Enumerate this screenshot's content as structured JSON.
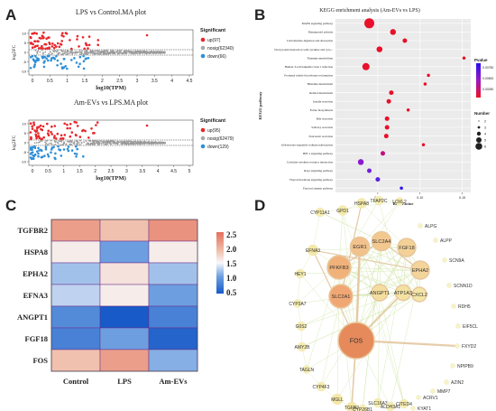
{
  "panel_letters": [
    "A",
    "B",
    "C",
    "D"
  ],
  "panel_a": {
    "plots": [
      {
        "title": "LPS vs Control.MA plot",
        "xlabel": "log10(TPM)",
        "ylabel": "log2FC",
        "xticks": [
          "0",
          "0.5",
          "1",
          "1.5",
          "2",
          "2.5",
          "3",
          "3.5",
          "4",
          "4.5"
        ],
        "yticks": [
          "10",
          "5",
          "0",
          "-5",
          "-10"
        ],
        "legend_title": "Significant",
        "legend": [
          {
            "label": "up(97)",
            "color": "#e8262a"
          },
          {
            "label": "nosig(62340)",
            "color": "#a9a9a9"
          },
          {
            "label": "down(66)",
            "color": "#2e8fd6"
          }
        ]
      },
      {
        "title": "Am-EVs vs LPS.MA plot",
        "xlabel": "log10(TPM)",
        "ylabel": "log2FC",
        "xticks": [
          "0",
          "0.5",
          "1",
          "1.5",
          "2",
          "2.5",
          "3",
          "3.5",
          "4",
          "4.5",
          "5"
        ],
        "yticks": [
          "10",
          "5",
          "0",
          "-5",
          "-10"
        ],
        "legend_title": "Significant",
        "legend": [
          {
            "label": "up(95)",
            "color": "#e8262a"
          },
          {
            "label": "nosig(62479)",
            "color": "#a9a9a9"
          },
          {
            "label": "down(129)",
            "color": "#2e8fd6"
          }
        ]
      }
    ]
  },
  "panel_b": {
    "title": "KEGG enrichment analysis (Am-EVs vs LPS)",
    "xlabel": "Rich Factor",
    "ylabel": "KEGG pathway",
    "xticks": [
      "0.05",
      "0.10",
      "0.15"
    ],
    "legend_pvalue_title": "Pvalue",
    "legend_pvalue_ticks": [
      "0.00750",
      "0.00500",
      "0.00250"
    ],
    "legend_number_title": "Number",
    "legend_number_values": [
      "2",
      "3",
      "4",
      "5",
      "6"
    ]
  },
  "chart_data": [
    {
      "type": "scatter",
      "title": "KEGG enrichment analysis (Am-EVs vs LPS)",
      "xlabel": "Rich Factor",
      "ylabel": "KEGG pathway",
      "xlim": [
        0.0,
        0.16
      ],
      "points": [
        {
          "pathway": "MAPK signaling pathway",
          "rich": 0.04,
          "number": 6,
          "color": "#e8102a"
        },
        {
          "pathway": "Rheumatoid arthritis",
          "rich": 0.068,
          "number": 3,
          "color": "#e8102a"
        },
        {
          "pathway": "Carbohydrate digestion and absorption",
          "rich": 0.082,
          "number": 2,
          "color": "#e8102a"
        },
        {
          "pathway": "Viral protein interaction with cytokine and cyto...",
          "rich": 0.052,
          "number": 3,
          "color": "#e8102a"
        },
        {
          "pathway": "Thiamine metabolism",
          "rich": 0.152,
          "number": 1,
          "color": "#e8102a"
        },
        {
          "pathway": "Human T-cell leukemia virus 1 infection",
          "rich": 0.036,
          "number": 4,
          "color": "#e8102a"
        },
        {
          "pathway": "Proximal tubule bicarbonate reclamation",
          "rich": 0.11,
          "number": 1,
          "color": "#e8102a"
        },
        {
          "pathway": "Histidine metabolism",
          "rich": 0.106,
          "number": 1,
          "color": "#e8102a"
        },
        {
          "pathway": "Retinol metabolism",
          "rich": 0.066,
          "number": 2,
          "color": "#e8102a"
        },
        {
          "pathway": "Insulin secretion",
          "rich": 0.063,
          "number": 2,
          "color": "#e8102a"
        },
        {
          "pathway": "Folate biosynthesis",
          "rich": 0.086,
          "number": 1,
          "color": "#e8102a"
        },
        {
          "pathway": "Bile secretion",
          "rich": 0.061,
          "number": 2,
          "color": "#e8102a"
        },
        {
          "pathway": "Salivary secretion",
          "rich": 0.061,
          "number": 2,
          "color": "#e8102a"
        },
        {
          "pathway": "Pancreatic secretion",
          "rich": 0.06,
          "number": 2,
          "color": "#e8102a"
        },
        {
          "pathway": "Aldosterone-regulated sodium reabsorption",
          "rich": 0.104,
          "number": 1,
          "color": "#e8102a"
        },
        {
          "pathway": "HIF-1 signaling pathway",
          "rich": 0.056,
          "number": 2,
          "color": "#c0107a"
        },
        {
          "pathway": "Cytokine-cytokine receptor interaction",
          "rich": 0.03,
          "number": 3,
          "color": "#8a18d0"
        },
        {
          "pathway": "Rap1 signaling pathway",
          "rich": 0.04,
          "number": 2,
          "color": "#7020d8"
        },
        {
          "pathway": "Thyroid hormone signaling pathway",
          "rich": 0.05,
          "number": 2,
          "color": "#5a20e0"
        },
        {
          "pathway": "Fanconi anemia pathway",
          "rich": 0.078,
          "number": 1,
          "color": "#2a10f0"
        }
      ]
    },
    {
      "type": "heatmap",
      "rows": [
        "TGFBR2",
        "HSPA8",
        "EPHA2",
        "EFNA3",
        "ANGPT1",
        "FGF18",
        "FOS"
      ],
      "columns": [
        "Control",
        "LPS",
        "Am-EVs"
      ],
      "values": [
        [
          2.2,
          1.9,
          2.3
        ],
        [
          1.5,
          0.9,
          1.5
        ],
        [
          1.1,
          1.6,
          1.1
        ],
        [
          1.2,
          1.5,
          0.9
        ],
        [
          0.7,
          0.2,
          0.6
        ],
        [
          0.6,
          0.9,
          0.3
        ],
        [
          1.9,
          2.2,
          1.0
        ]
      ],
      "colorbar_ticks": [
        "2.5",
        "2.0",
        "1.5",
        "1.0",
        "0.5"
      ],
      "vlim": [
        0.2,
        2.6
      ]
    }
  ],
  "panel_d": {
    "nodes": [
      {
        "label": "FOS",
        "size": 40,
        "color": "#e68a5c"
      },
      {
        "label": "SLC2A1",
        "size": 26,
        "color": "#f1a774"
      },
      {
        "label": "PFKFB3",
        "size": 26,
        "color": "#f0b27a"
      },
      {
        "label": "EGR1",
        "size": 21,
        "color": "#f3c28c"
      },
      {
        "label": "SLC2A4",
        "size": 21,
        "color": "#f3c88f"
      },
      {
        "label": "FGF18",
        "size": 20,
        "color": "#f3d197"
      },
      {
        "label": "EPHA2",
        "size": 20,
        "color": "#f3d59c"
      },
      {
        "label": "ANGPT1",
        "size": 18,
        "color": "#f3de9f"
      },
      {
        "label": "ATP1A3",
        "size": 17,
        "color": "#f4e2a2"
      },
      {
        "label": "CXCL2",
        "size": 16,
        "color": "#f4e6a6"
      },
      {
        "label": "GPD1",
        "size": 11,
        "color": "#f5eba9"
      },
      {
        "label": "HSPA8",
        "size": 11,
        "color": "#f5eba9"
      },
      {
        "label": "TFAP2C",
        "size": 10,
        "color": "#f6edb0"
      },
      {
        "label": "LOXL2",
        "size": 9,
        "color": "#f6efb4"
      },
      {
        "label": "CYP11A1",
        "size": 10,
        "color": "#f6edb0"
      },
      {
        "label": "EFNA3",
        "size": 12,
        "color": "#f5e8a6"
      },
      {
        "label": "HEY1",
        "size": 10,
        "color": "#f6edb0"
      },
      {
        "label": "CYP3A7",
        "size": 9,
        "color": "#f6efb4"
      },
      {
        "label": "G0S2",
        "size": 10,
        "color": "#f6edb0"
      },
      {
        "label": "AMY2B",
        "size": 10,
        "color": "#f6edb0"
      },
      {
        "label": "TAGLN",
        "size": 9,
        "color": "#f6efb4"
      },
      {
        "label": "CYP4F3",
        "size": 10,
        "color": "#f6edb0"
      },
      {
        "label": "MGLL",
        "size": 12,
        "color": "#f5e8a6"
      },
      {
        "label": "TGFB2",
        "size": 12,
        "color": "#f5e8a6"
      },
      {
        "label": "CYP26B1",
        "size": 10,
        "color": "#f6edb0"
      },
      {
        "label": "SLC16A3",
        "size": 10,
        "color": "#f6edb0"
      },
      {
        "label": "ALDH3A1",
        "size": 10,
        "color": "#f6edb0"
      },
      {
        "label": "CITED4",
        "size": 10,
        "color": "#f6edb0"
      },
      {
        "label": "ALPG",
        "size": 5,
        "color": "#f7f3c8"
      },
      {
        "label": "ALPP",
        "size": 5,
        "color": "#f7f3c8"
      },
      {
        "label": "SCN9A",
        "size": 5,
        "color": "#f7f3c8"
      },
      {
        "label": "SCNN1D",
        "size": 5,
        "color": "#f7f3c8"
      },
      {
        "label": "RDH5",
        "size": 5,
        "color": "#f7f3c8"
      },
      {
        "label": "EIF5CL",
        "size": 5,
        "color": "#f7f3c8"
      },
      {
        "label": "FXYD2",
        "size": 5,
        "color": "#f7f3c8"
      },
      {
        "label": "NPIPB9",
        "size": 5,
        "color": "#f7f3c8"
      },
      {
        "label": "AZIN2",
        "size": 5,
        "color": "#f7f3c8"
      },
      {
        "label": "MMP7",
        "size": 5,
        "color": "#f7f3c8"
      },
      {
        "label": "ACRV1",
        "size": 5,
        "color": "#f7f3c8"
      },
      {
        "label": "KYAT1",
        "size": 5,
        "color": "#f7f3c8"
      }
    ]
  }
}
